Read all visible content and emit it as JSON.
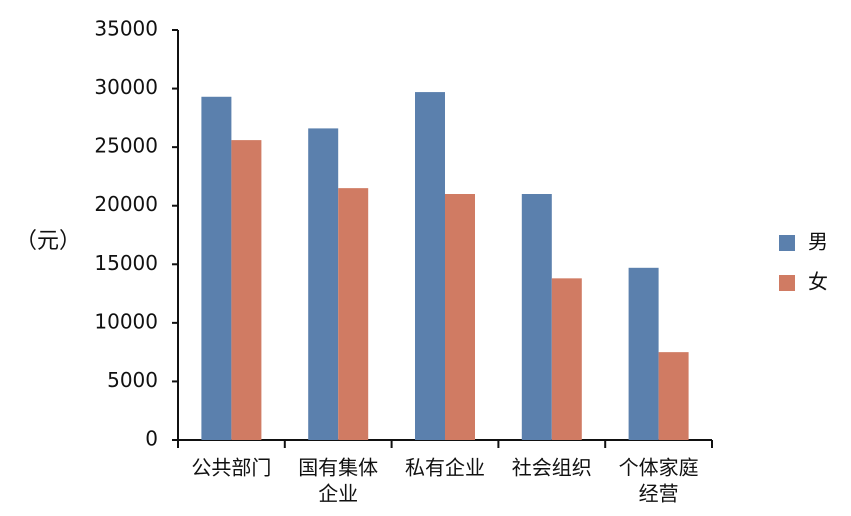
{
  "chart_data": {
    "type": "bar",
    "ylabel": "（元）",
    "categories": [
      [
        "公共部门"
      ],
      [
        "国有集体",
        "企业"
      ],
      [
        "私有企业"
      ],
      [
        "社会组织"
      ],
      [
        "个体家庭",
        "经营"
      ]
    ],
    "series": [
      {
        "name": "男",
        "color": "#5b80ad",
        "values": [
          29300,
          26600,
          29700,
          21000,
          14700
        ]
      },
      {
        "name": "女",
        "color": "#d07b63",
        "values": [
          25600,
          21500,
          21000,
          13800,
          7500
        ]
      }
    ],
    "ylim": [
      0,
      35000
    ],
    "yticks": [
      "0",
      "5000",
      "10000",
      "15000",
      "20000",
      "25000",
      "30000",
      "35000"
    ],
    "grid": false,
    "legend": "right"
  }
}
